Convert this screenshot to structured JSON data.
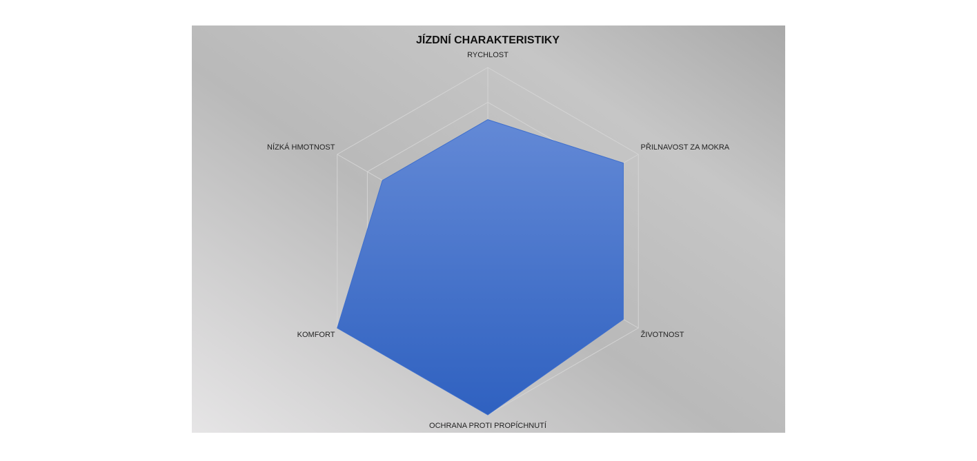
{
  "chart_data": {
    "type": "radar",
    "title": "JÍZDNÍ CHARAKTERISTIKY",
    "categories": [
      "RYCHLOST",
      "PŘILNAVOST ZA MOKRA",
      "ŽIVOTNOST",
      "OCHRANA PROTI PROPÍCHNUTÍ",
      "KOMFORT",
      "NÍZKÁ HMOTNOST"
    ],
    "values": [
      3.5,
      4.5,
      4.5,
      5,
      5,
      3.5
    ],
    "color": "#3f6fcc",
    "rlim": [
      0,
      5
    ],
    "rticks": [
      1,
      2,
      3,
      4,
      5
    ],
    "grid": true
  }
}
